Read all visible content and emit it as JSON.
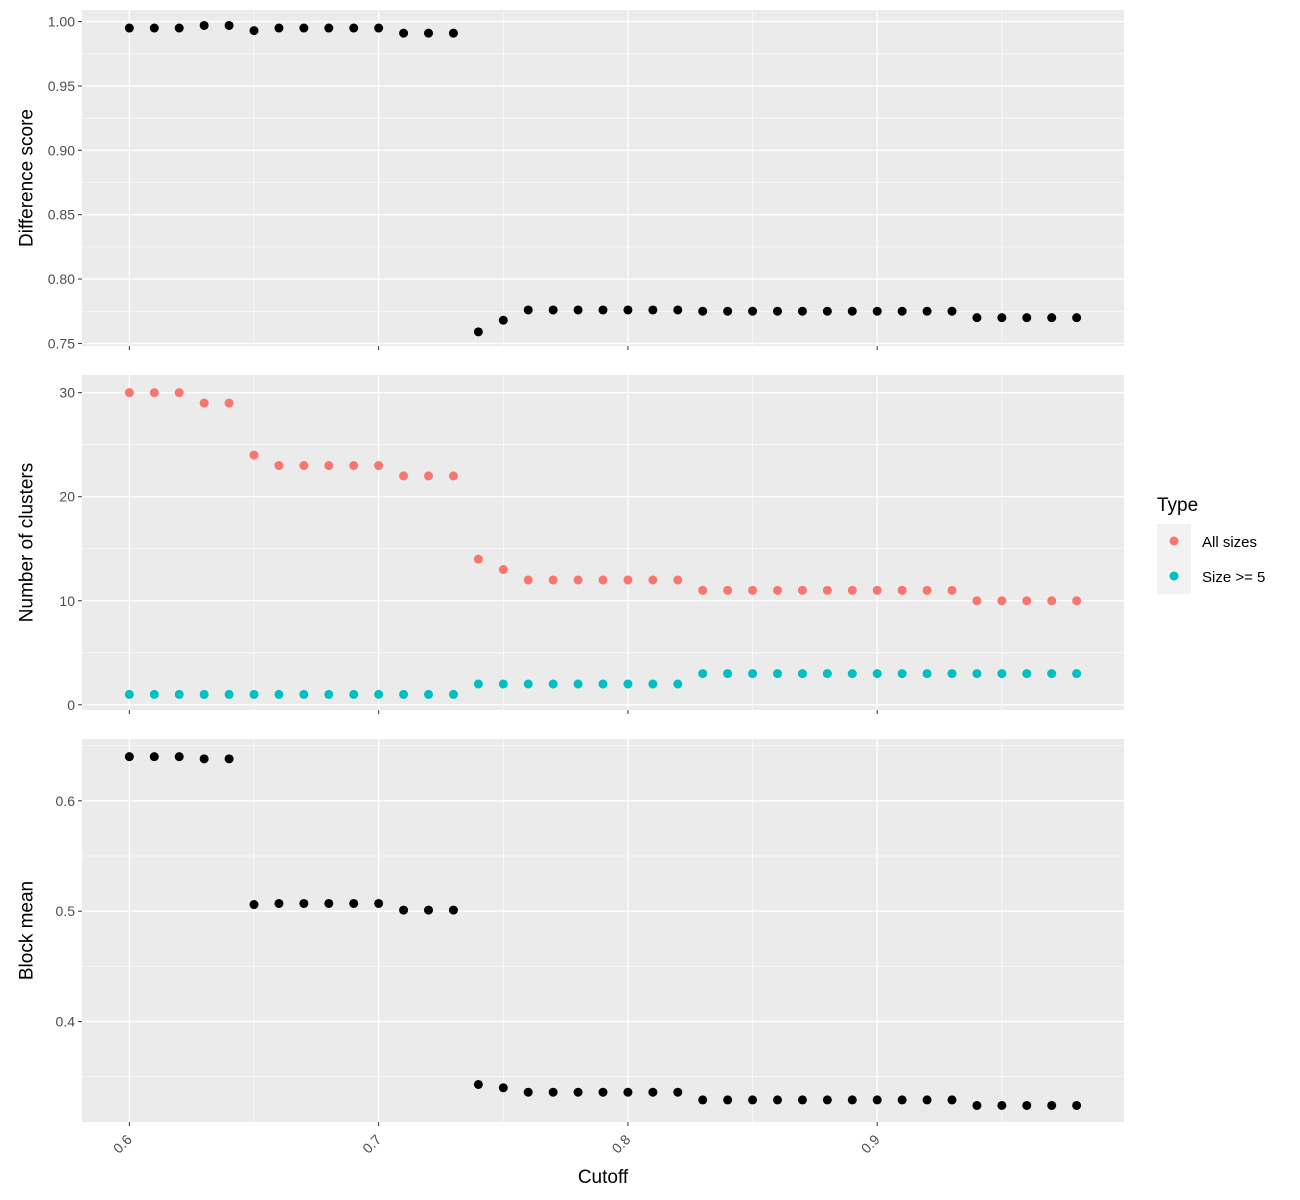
{
  "colors": {
    "panel_bg": "#EBEBEB",
    "grid": "#FFFFFF",
    "tick": "#333333",
    "point_black": "#000000",
    "all_sizes": "#F8766D",
    "size_ge_5": "#00BFC4"
  },
  "legend": {
    "title": "Type",
    "placement": "right",
    "items": [
      {
        "label": "All sizes",
        "color_key": "all_sizes"
      },
      {
        "label": "Size >= 5",
        "color_key": "size_ge_5"
      }
    ]
  },
  "chart_data": [
    {
      "type": "scatter",
      "xlabel": "Cutoff",
      "ylabel": "Difference score",
      "xlim": [
        0.581,
        0.999
      ],
      "ylim": [
        0.748,
        1.009
      ],
      "x_ticks": [
        "0.6",
        "0.7",
        "0.8",
        "0.9"
      ],
      "y_ticks": [
        "0.75",
        "0.80",
        "0.85",
        "0.90",
        "0.95",
        "1.00"
      ],
      "grid": true,
      "x": [
        0.6,
        0.61,
        0.62,
        0.63,
        0.64,
        0.65,
        0.66,
        0.67,
        0.68,
        0.69,
        0.7,
        0.71,
        0.72,
        0.73,
        0.74,
        0.75,
        0.76,
        0.77,
        0.78,
        0.79,
        0.8,
        0.81,
        0.82,
        0.83,
        0.84,
        0.85,
        0.86,
        0.87,
        0.88,
        0.89,
        0.9,
        0.91,
        0.92,
        0.93,
        0.94,
        0.95,
        0.96,
        0.97,
        0.98
      ],
      "series": [
        {
          "color_key": "point_black",
          "values": [
            0.995,
            0.995,
            0.995,
            0.997,
            0.997,
            0.993,
            0.995,
            0.995,
            0.995,
            0.995,
            0.995,
            0.991,
            0.991,
            0.991,
            0.759,
            0.768,
            0.776,
            0.776,
            0.776,
            0.776,
            0.776,
            0.776,
            0.776,
            0.775,
            0.775,
            0.775,
            0.775,
            0.775,
            0.775,
            0.775,
            0.775,
            0.775,
            0.775,
            0.775,
            0.77,
            0.77,
            0.77,
            0.77,
            0.77
          ]
        }
      ]
    },
    {
      "type": "scatter",
      "xlabel": "Cutoff",
      "ylabel": "Number of clusters",
      "xlim": [
        0.581,
        0.999
      ],
      "ylim": [
        -0.5,
        31.7
      ],
      "x_ticks": [
        "0.6",
        "0.7",
        "0.8",
        "0.9"
      ],
      "y_ticks": [
        "0",
        "10",
        "20",
        "30"
      ],
      "grid": true,
      "x": [
        0.6,
        0.61,
        0.62,
        0.63,
        0.64,
        0.65,
        0.66,
        0.67,
        0.68,
        0.69,
        0.7,
        0.71,
        0.72,
        0.73,
        0.74,
        0.75,
        0.76,
        0.77,
        0.78,
        0.79,
        0.8,
        0.81,
        0.82,
        0.83,
        0.84,
        0.85,
        0.86,
        0.87,
        0.88,
        0.89,
        0.9,
        0.91,
        0.92,
        0.93,
        0.94,
        0.95,
        0.96,
        0.97,
        0.98
      ],
      "series": [
        {
          "name": "All sizes",
          "color_key": "all_sizes",
          "values": [
            30,
            30,
            30,
            29,
            29,
            24,
            23,
            23,
            23,
            23,
            23,
            22,
            22,
            22,
            14,
            13,
            12,
            12,
            12,
            12,
            12,
            12,
            12,
            11,
            11,
            11,
            11,
            11,
            11,
            11,
            11,
            11,
            11,
            11,
            10,
            10,
            10,
            10,
            10
          ]
        },
        {
          "name": "Size >= 5",
          "color_key": "size_ge_5",
          "values": [
            1,
            1,
            1,
            1,
            1,
            1,
            1,
            1,
            1,
            1,
            1,
            1,
            1,
            1,
            2,
            2,
            2,
            2,
            2,
            2,
            2,
            2,
            2,
            3,
            3,
            3,
            3,
            3,
            3,
            3,
            3,
            3,
            3,
            3,
            3,
            3,
            3,
            3,
            3
          ]
        }
      ]
    },
    {
      "type": "scatter",
      "xlabel": "Cutoff",
      "ylabel": "Block mean",
      "xlim": [
        0.581,
        0.999
      ],
      "ylim": [
        0.309,
        0.656
      ],
      "x_ticks": [
        "0.6",
        "0.7",
        "0.8",
        "0.9"
      ],
      "y_ticks": [
        "0.4",
        "0.5",
        "0.6"
      ],
      "grid": true,
      "x": [
        0.6,
        0.61,
        0.62,
        0.63,
        0.64,
        0.65,
        0.66,
        0.67,
        0.68,
        0.69,
        0.7,
        0.71,
        0.72,
        0.73,
        0.74,
        0.75,
        0.76,
        0.77,
        0.78,
        0.79,
        0.8,
        0.81,
        0.82,
        0.83,
        0.84,
        0.85,
        0.86,
        0.87,
        0.88,
        0.89,
        0.9,
        0.91,
        0.92,
        0.93,
        0.94,
        0.95,
        0.96,
        0.97,
        0.98
      ],
      "series": [
        {
          "color_key": "point_black",
          "values": [
            0.64,
            0.64,
            0.64,
            0.638,
            0.638,
            0.506,
            0.507,
            0.507,
            0.507,
            0.507,
            0.507,
            0.501,
            0.501,
            0.501,
            0.343,
            0.34,
            0.336,
            0.336,
            0.336,
            0.336,
            0.336,
            0.336,
            0.336,
            0.329,
            0.329,
            0.329,
            0.329,
            0.329,
            0.329,
            0.329,
            0.329,
            0.329,
            0.329,
            0.329,
            0.324,
            0.324,
            0.324,
            0.324,
            0.324
          ]
        }
      ]
    }
  ]
}
